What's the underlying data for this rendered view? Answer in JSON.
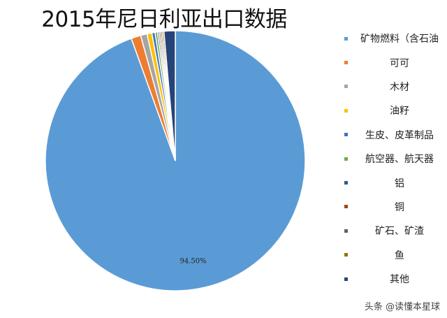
{
  "chart_data": {
    "type": "pie",
    "title": "2015年尼日利亚出口数据",
    "categories": [
      "矿物燃料（含石油",
      "可可",
      "木材",
      "油籽",
      "生皮、皮革制品",
      "航空器、航天器",
      "铝",
      "铜",
      "矿石、矿渣",
      "鱼",
      "其他"
    ],
    "values": [
      94.5,
      1.2,
      0.8,
      0.6,
      0.4,
      0.3,
      0.2,
      0.2,
      0.2,
      0.2,
      1.4
    ],
    "colors": [
      "#5B9BD5",
      "#ED7D31",
      "#A5A5A5",
      "#FFC000",
      "#4472C4",
      "#70AD47",
      "#255E91",
      "#9E480E",
      "#636363",
      "#997300",
      "#264478"
    ],
    "data_labels": [
      "94.50%",
      "",
      "",
      "",
      "",
      "",
      "",
      "",
      "",
      "",
      ""
    ],
    "legend_position": "right"
  },
  "watermark": "头条 @读懂本星球"
}
